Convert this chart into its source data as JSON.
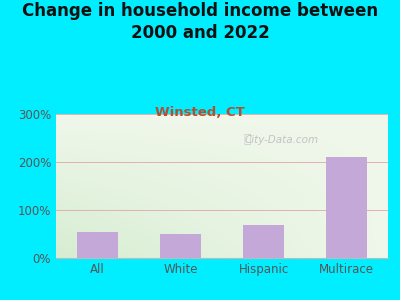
{
  "title": "Change in household income between\n2000 and 2022",
  "subtitle": "Winsted, CT",
  "categories": [
    "All",
    "White",
    "Hispanic",
    "Multirace"
  ],
  "values": [
    55,
    50,
    68,
    210
  ],
  "bar_color": "#c4a8d8",
  "title_fontsize": 12,
  "subtitle_fontsize": 9.5,
  "subtitle_color": "#b05030",
  "title_color": "#111111",
  "background_outer": "#00eeff",
  "ylim": [
    0,
    300
  ],
  "yticks": [
    0,
    100,
    200,
    300
  ],
  "ytick_labels": [
    "0%",
    "100%",
    "200%",
    "300%"
  ],
  "grid_color": "#e0b0b0",
  "watermark": "City-Data.com",
  "bg_color_topleft": "#d8edd8",
  "bg_color_topright": "#f0f8ee",
  "bg_color_bottomleft": "#c8e8c8",
  "bg_color_bottomright": "#e8f5e8"
}
